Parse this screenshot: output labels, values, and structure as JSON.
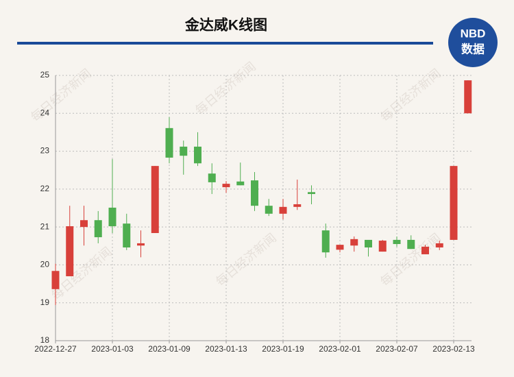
{
  "chart_data": {
    "type": "candlestick",
    "title": "金达威K线图",
    "logo": {
      "top": "NBD",
      "bottom": "数据"
    },
    "watermark": "每日经济新闻",
    "categories": [
      "2022-12-27",
      null,
      null,
      null,
      "2023-01-03",
      null,
      null,
      null,
      "2023-01-09",
      null,
      null,
      null,
      "2023-01-13",
      null,
      null,
      null,
      "2023-01-19",
      null,
      null,
      null,
      "2023-02-01",
      null,
      null,
      null,
      "2023-02-07",
      null,
      null,
      null,
      "2023-02-13",
      null
    ],
    "open": [
      19.36,
      19.7,
      21.0,
      21.18,
      21.51,
      21.09,
      20.51,
      20.84,
      23.61,
      23.12,
      23.12,
      22.41,
      22.05,
      22.2,
      22.23,
      21.56,
      21.35,
      21.53,
      21.92,
      20.91,
      20.4,
      20.51,
      20.66,
      20.35,
      20.66,
      20.66,
      20.28,
      20.46,
      20.66,
      24.0
    ],
    "high": [
      20.03,
      21.56,
      21.56,
      21.42,
      22.79,
      21.35,
      20.91,
      22.61,
      23.9,
      23.28,
      23.5,
      22.68,
      22.21,
      22.7,
      22.45,
      21.74,
      21.74,
      22.25,
      22.1,
      21.09,
      20.53,
      20.75,
      20.66,
      20.66,
      20.75,
      20.78,
      20.53,
      20.64,
      22.61,
      24.87
    ],
    "low": [
      18.94,
      19.7,
      20.51,
      20.57,
      20.84,
      20.39,
      20.2,
      20.84,
      22.68,
      22.38,
      22.61,
      21.87,
      21.9,
      22.1,
      21.42,
      21.29,
      21.2,
      21.45,
      21.6,
      20.19,
      20.33,
      20.35,
      20.22,
      20.35,
      20.48,
      20.42,
      20.28,
      20.39,
      20.66,
      24.0
    ],
    "close": [
      19.84,
      21.02,
      21.18,
      20.73,
      21.02,
      20.46,
      20.57,
      22.61,
      22.83,
      22.88,
      22.68,
      22.18,
      22.14,
      22.1,
      21.56,
      21.35,
      21.53,
      21.6,
      21.87,
      20.33,
      20.53,
      20.68,
      20.46,
      20.64,
      20.55,
      20.42,
      20.48,
      20.57,
      22.61,
      24.87
    ],
    "up_color": "#d8403a",
    "down_color": "#4fae50",
    "ylim": [
      18,
      25
    ],
    "yticks": [
      18,
      19,
      20,
      21,
      22,
      23,
      24,
      25
    ],
    "grid": true
  }
}
